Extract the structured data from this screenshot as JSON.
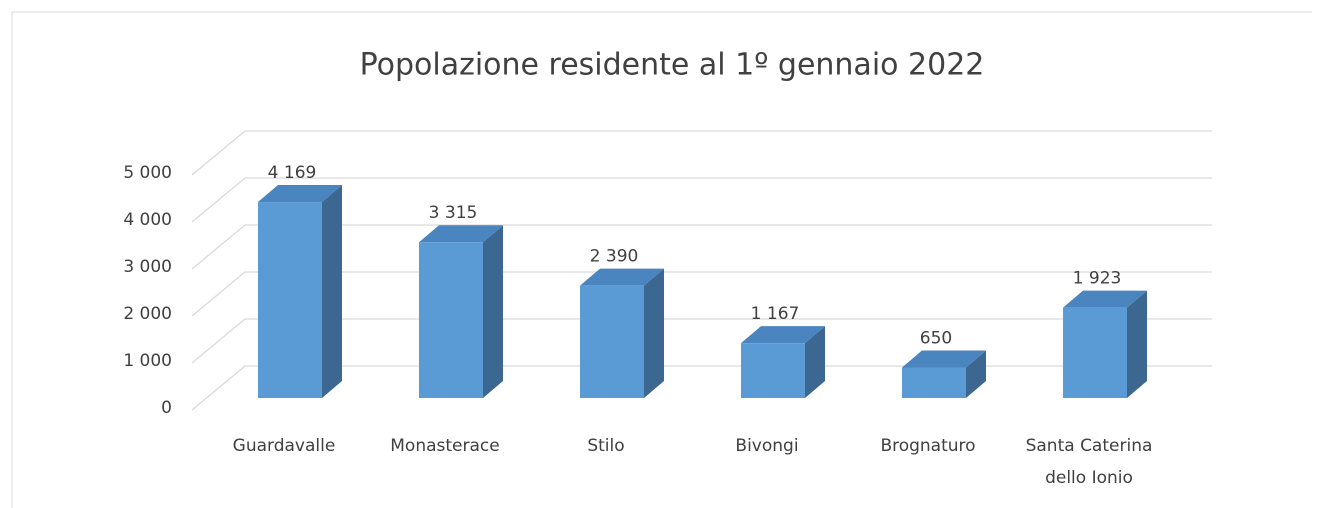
{
  "chart_data": {
    "type": "bar3d",
    "title": "Popolazione residente al 1º gennaio 2022",
    "categories": [
      "Guardavalle",
      "Monasterace",
      "Stilo",
      "Bivongi",
      "Brognaturo",
      "Santa Caterina dello Ionio"
    ],
    "values": [
      4169,
      3315,
      2390,
      1167,
      650,
      1923
    ],
    "value_labels": [
      "4 169",
      "3 315",
      "2 390",
      "1 167",
      "650",
      "1 923"
    ],
    "color": "#5b9bd5",
    "ylim": [
      0,
      5000
    ],
    "yticks": [
      0,
      {
        "value": 1000,
        "label": "1 000"
      },
      {
        "value": 2000,
        "label": "2 000"
      },
      {
        "value": 3000,
        "label": "3 000"
      },
      {
        "value": 4000,
        "label": "4 000"
      },
      {
        "value": 5000,
        "label": "5 000"
      }
    ],
    "grid": true
  }
}
